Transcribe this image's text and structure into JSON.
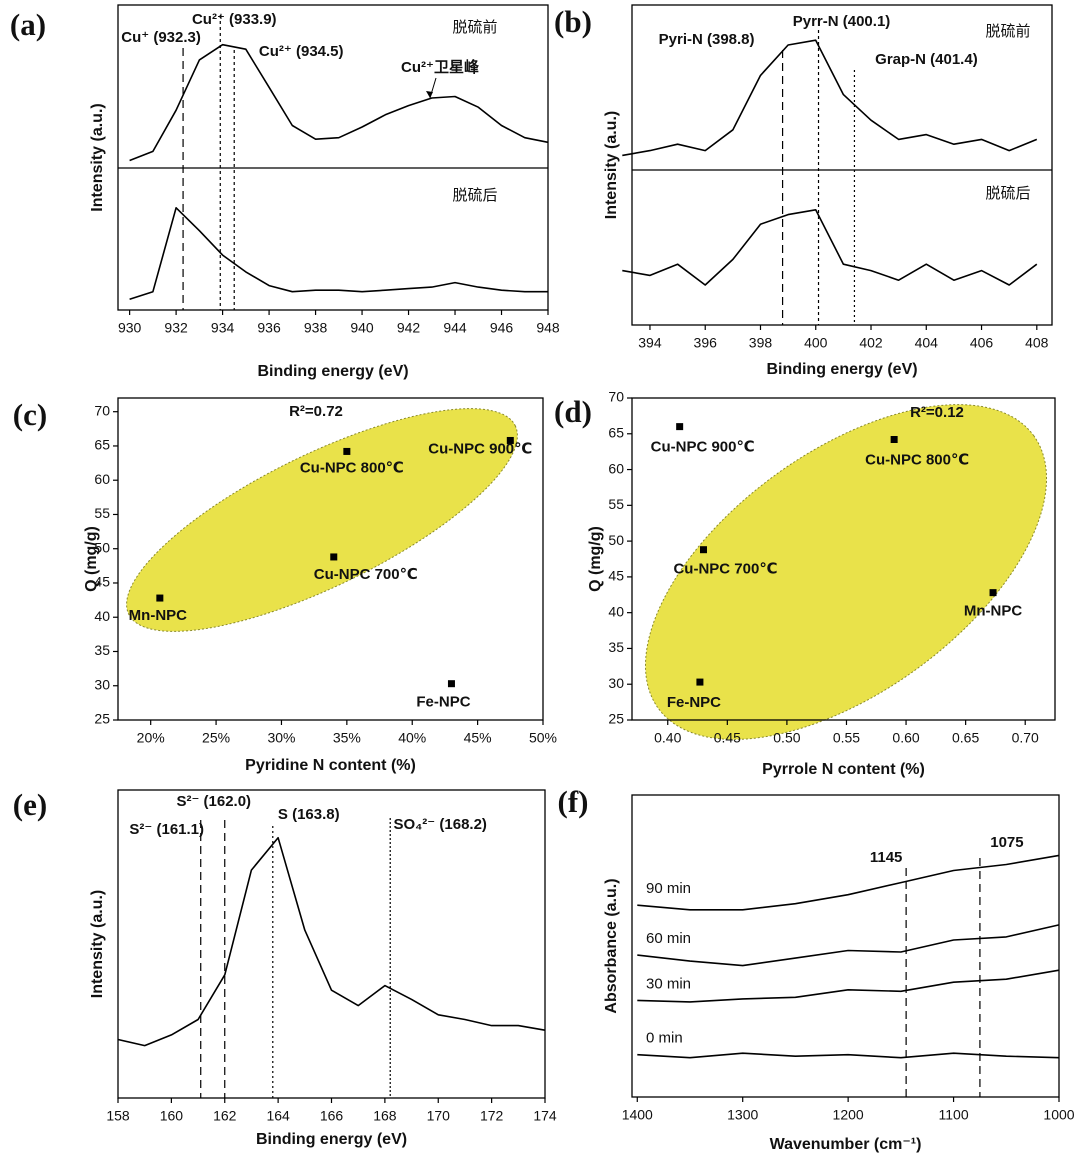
{
  "chart_data": [
    {
      "type": "line",
      "panel_label": "(a)",
      "x_label": "Binding energy (eV)",
      "y_label": "Intensity (a.u.)",
      "x": [
        930,
        931,
        932,
        933,
        934,
        935,
        936,
        937,
        938,
        939,
        940,
        941,
        942,
        943,
        944,
        945,
        946,
        947,
        948
      ],
      "series": [
        {
          "name": "脱硫前",
          "color": "#000000",
          "values": [
            9.8,
            10.4,
            13.1,
            16.4,
            17.4,
            17.1,
            14.6,
            12.1,
            11.2,
            11.3,
            12.0,
            12.8,
            13.4,
            13.9,
            14.0,
            13.3,
            12.1,
            11.3,
            11.0
          ]
        },
        {
          "name": "脱硫后",
          "color": "#000000",
          "values": [
            0.7,
            1.2,
            6.7,
            5.2,
            3.6,
            2.5,
            1.6,
            1.2,
            1.3,
            1.3,
            1.2,
            1.3,
            1.4,
            1.5,
            1.8,
            1.5,
            1.3,
            1.2,
            1.2
          ]
        }
      ],
      "reference_lines": [
        {
          "value": 932.3,
          "label": "Cu⁺ (932.3)"
        },
        {
          "value": 933.9,
          "label": "Cu²⁺ (933.9)"
        },
        {
          "value": 934.5,
          "label": "Cu²⁺ (934.5)"
        }
      ],
      "annotation": "Cu²⁺卫星峰",
      "xlim": [
        929.5,
        948
      ],
      "xticks": [
        930,
        932,
        934,
        936,
        938,
        940,
        942,
        944,
        946,
        948
      ],
      "ylim": [
        0,
        20
      ]
    },
    {
      "type": "line",
      "panel_label": "(b)",
      "x_label": "Binding energy (eV)",
      "y_label": "Intensity (a.u.)",
      "x": [
        393,
        394,
        395,
        396,
        397,
        398,
        399,
        400,
        401,
        402,
        403,
        404,
        405,
        406,
        407,
        408
      ],
      "series": [
        {
          "name": "脱硫前",
          "color": "#000000",
          "values": [
            10.6,
            10.9,
            11.3,
            10.9,
            12.2,
            15.6,
            17.5,
            17.8,
            14.4,
            12.8,
            11.6,
            11.9,
            11.3,
            11.6,
            10.9,
            11.6
          ]
        },
        {
          "name": "脱硫后",
          "color": "#000000",
          "values": [
            3.4,
            3.1,
            3.8,
            2.5,
            4.1,
            6.3,
            6.9,
            7.2,
            3.8,
            3.4,
            2.8,
            3.8,
            2.8,
            3.4,
            2.5,
            3.8
          ]
        }
      ],
      "reference_lines": [
        {
          "value": 398.8,
          "label": "Pyri-N (398.8)"
        },
        {
          "value": 400.1,
          "label": "Pyrr-N (400.1)"
        },
        {
          "value": 401.4,
          "label": "Grap-N (401.4)"
        }
      ],
      "xlim": [
        393.35,
        408.55
      ],
      "xticks": [
        394,
        396,
        398,
        400,
        402,
        404,
        406,
        408
      ],
      "ylim": [
        0,
        20
      ]
    },
    {
      "type": "scatter",
      "panel_label": "(c)",
      "x_label": "Pyridine N content (%)",
      "y_label": "Q (mg/g)",
      "r_squared": "R²=0.72",
      "color": "#000000",
      "ellipse_color": "#e9e24a",
      "points": [
        {
          "label": "Mn-NPC",
          "x": 20.7,
          "y": 42.8
        },
        {
          "label": "Cu-NPC 700℃",
          "x": 34,
          "y": 48.8
        },
        {
          "label": "Cu-NPC  800℃",
          "x": 35,
          "y": 64.2
        },
        {
          "label": "Cu-NPC  900℃",
          "x": 47.5,
          "y": 65.8
        },
        {
          "label": "Fe-NPC",
          "x": 43,
          "y": 30.3
        }
      ],
      "xlim": [
        17.5,
        50
      ],
      "xticks": [
        {
          "value": 20,
          "label": "20%"
        },
        {
          "value": 25,
          "label": "25%"
        },
        {
          "value": 30,
          "label": "30%"
        },
        {
          "value": 35,
          "label": "35%"
        },
        {
          "value": 40,
          "label": "40%"
        },
        {
          "value": 45,
          "label": "45%"
        },
        {
          "value": 50,
          "label": "50%"
        }
      ],
      "ylim": [
        25,
        72
      ],
      "yticks": [
        25,
        30,
        35,
        40,
        45,
        50,
        55,
        60,
        65,
        70
      ]
    },
    {
      "type": "scatter",
      "panel_label": "(d)",
      "x_label": "Pyrrole N content (%)",
      "y_label": "Q (mg/g)",
      "r_squared": "R²=0.12",
      "color": "#000000",
      "ellipse_color": "#e9e24a",
      "points": [
        {
          "label": "Cu-NPC  900℃",
          "x": 0.41,
          "y": 66
        },
        {
          "label": "Cu-NPC  800℃",
          "x": 0.59,
          "y": 64.2
        },
        {
          "label": "Cu-NPC 700℃",
          "x": 0.43,
          "y": 48.8
        },
        {
          "label": "Mn-NPC",
          "x": 0.673,
          "y": 42.8
        },
        {
          "label": "Fe-NPC",
          "x": 0.427,
          "y": 30.3
        }
      ],
      "xlim": [
        0.37,
        0.725
      ],
      "xticks": [
        {
          "value": 0.4,
          "label": "0.40"
        },
        0.45,
        {
          "value": 0.5,
          "label": "0.50"
        },
        0.55,
        {
          "value": 0.6,
          "label": "0.60"
        },
        0.65,
        {
          "value": 0.7,
          "label": "0.70"
        }
      ],
      "ylim": [
        25,
        70
      ],
      "yticks": [
        25,
        30,
        35,
        40,
        45,
        50,
        55,
        60,
        65,
        70
      ]
    },
    {
      "type": "line",
      "panel_label": "(e)",
      "x_label": "Binding energy (eV)",
      "y_label": "Intensity (a.u.)",
      "x": [
        158,
        159,
        160,
        161,
        162,
        163,
        164,
        165,
        166,
        167,
        168,
        169,
        170,
        171,
        172,
        173,
        174
      ],
      "series": [
        {
          "name": null,
          "color": "#000000",
          "values": [
            3.8,
            3.4,
            4.1,
            5.1,
            8.0,
            14.8,
            16.9,
            10.9,
            7.0,
            6.0,
            7.3,
            6.4,
            5.4,
            5.1,
            4.7,
            4.7,
            4.4
          ]
        }
      ],
      "reference_lines": [
        {
          "value": 161.1,
          "label": "S²⁻ (161.1)"
        },
        {
          "value": 162.0,
          "label": "S²⁻ (162.0)"
        },
        {
          "value": 163.8,
          "label": "S (163.8)"
        },
        {
          "value": 168.2,
          "label": "SO₄²⁻ (168.2)"
        }
      ],
      "xlim": [
        158,
        174
      ],
      "xticks": [
        158,
        160,
        162,
        164,
        166,
        168,
        170,
        172,
        174
      ],
      "ylim": [
        0,
        20
      ]
    },
    {
      "type": "line",
      "panel_label": "(f)",
      "x_label": "Wavenumber (cm⁻¹)",
      "y_label": "Absorbance (a.u.)",
      "x": [
        1400,
        1350,
        1300,
        1250,
        1200,
        1150,
        1100,
        1050,
        1000
      ],
      "series": [
        {
          "name": "0 min",
          "color": "#000000",
          "values": [
            2.8,
            2.6,
            2.9,
            2.7,
            2.8,
            2.6,
            2.9,
            2.7,
            2.6
          ]
        },
        {
          "name": "30 min",
          "color": "#000000",
          "values": [
            6.4,
            6.3,
            6.5,
            6.6,
            7.1,
            7.0,
            7.6,
            7.8,
            8.4
          ]
        },
        {
          "name": "60 min",
          "color": "#000000",
          "values": [
            9.4,
            9.0,
            8.7,
            9.2,
            9.7,
            9.6,
            10.4,
            10.6,
            11.4
          ]
        },
        {
          "name": "90 min",
          "color": "#000000",
          "values": [
            12.7,
            12.4,
            12.4,
            12.8,
            13.4,
            14.2,
            15.0,
            15.4,
            16.0
          ]
        }
      ],
      "reference_lines": [
        1145,
        1075
      ],
      "xlim": [
        1405,
        1000
      ],
      "xticks": [
        1400,
        1300,
        1200,
        1100,
        1000
      ],
      "ylim": [
        0,
        20
      ]
    }
  ]
}
